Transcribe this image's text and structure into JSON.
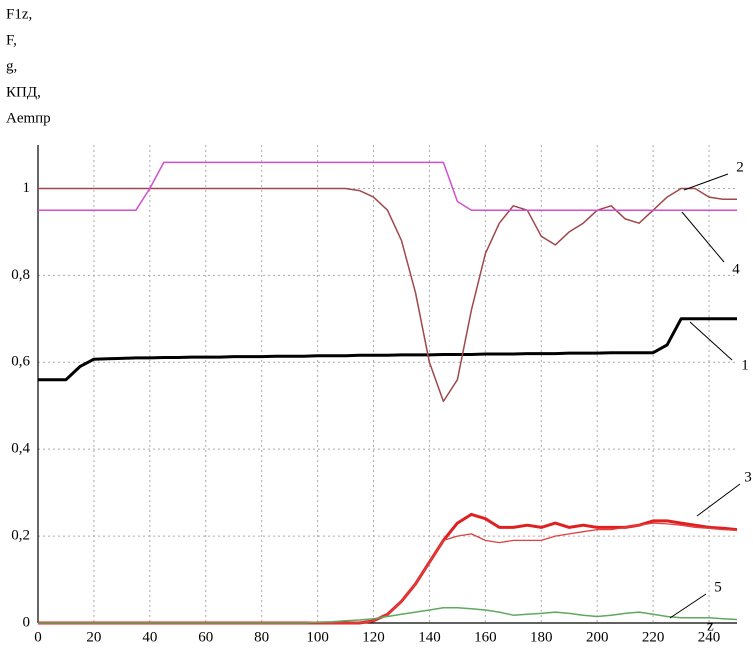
{
  "chart_data": {
    "type": "line",
    "y_labels": [
      "F1z,",
      "F,",
      "g,",
      "КПД,",
      "Aemпр"
    ],
    "x_label": "z",
    "x": [
      0,
      5,
      10,
      15,
      20,
      25,
      30,
      35,
      40,
      45,
      50,
      55,
      60,
      65,
      70,
      75,
      80,
      85,
      90,
      95,
      100,
      105,
      110,
      115,
      120,
      125,
      130,
      135,
      140,
      145,
      150,
      155,
      160,
      165,
      170,
      175,
      180,
      185,
      190,
      195,
      200,
      205,
      210,
      215,
      220,
      225,
      230,
      235,
      240,
      245,
      250
    ],
    "xlim": [
      0,
      250
    ],
    "xticks": [
      0,
      20,
      40,
      60,
      80,
      100,
      120,
      140,
      160,
      180,
      200,
      220,
      240
    ],
    "ylim": [
      0,
      1.1
    ],
    "yticks": [
      0,
      {
        "value": 0.2,
        "label": "0,2"
      },
      {
        "value": 0.4,
        "label": "0,4"
      },
      {
        "value": 0.6,
        "label": "0,6"
      },
      {
        "value": 0.8,
        "label": "0,8"
      },
      1
    ],
    "grid": true,
    "series": [
      {
        "label": "1",
        "color": "#000000",
        "values": [
          0.56,
          0.56,
          0.56,
          0.59,
          0.607,
          0.608,
          0.609,
          0.61,
          0.61,
          0.611,
          0.611,
          0.612,
          0.612,
          0.612,
          0.613,
          0.613,
          0.613,
          0.614,
          0.614,
          0.614,
          0.615,
          0.615,
          0.615,
          0.616,
          0.616,
          0.616,
          0.617,
          0.617,
          0.617,
          0.618,
          0.618,
          0.618,
          0.619,
          0.619,
          0.619,
          0.62,
          0.62,
          0.62,
          0.621,
          0.621,
          0.621,
          0.622,
          0.622,
          0.622,
          0.622,
          0.64,
          0.7,
          0.7,
          0.7,
          0.7,
          0.7
        ]
      },
      {
        "label": "2",
        "color": "#a0484a",
        "values": [
          1,
          1,
          1,
          1,
          1,
          1,
          1,
          1,
          1,
          1,
          1,
          1,
          1,
          1,
          1,
          1,
          1,
          1,
          1,
          1,
          1,
          1,
          1,
          0.995,
          0.98,
          0.95,
          0.88,
          0.76,
          0.6,
          0.51,
          0.56,
          0.72,
          0.85,
          0.92,
          0.96,
          0.95,
          0.89,
          0.87,
          0.9,
          0.92,
          0.95,
          0.96,
          0.93,
          0.92,
          0.95,
          0.98,
          1,
          1,
          0.98,
          0.975,
          0.975
        ]
      },
      {
        "label": "3",
        "color": "#e02020",
        "values": [
          0,
          0,
          0,
          0,
          0,
          0,
          0,
          0,
          0,
          0,
          0,
          0,
          0,
          0,
          0,
          0,
          0,
          0,
          0,
          0,
          0,
          0,
          0,
          0,
          0.005,
          0.02,
          0.05,
          0.09,
          0.14,
          0.19,
          0.23,
          0.25,
          0.24,
          0.22,
          0.22,
          0.225,
          0.22,
          0.23,
          0.22,
          0.225,
          0.22,
          0.22,
          0.22,
          0.225,
          0.235,
          0.235,
          0.23,
          0.225,
          0.22,
          0.218,
          0.215
        ]
      },
      {
        "color": "#e04040",
        "values": [
          0,
          0,
          0,
          0,
          0,
          0,
          0,
          0,
          0,
          0,
          0,
          0,
          0,
          0,
          0,
          0,
          0,
          0,
          0,
          0,
          0,
          0,
          0,
          0,
          0.005,
          0.02,
          0.05,
          0.09,
          0.14,
          0.19,
          0.2,
          0.205,
          0.19,
          0.185,
          0.19,
          0.19,
          0.19,
          0.2,
          0.205,
          0.21,
          0.215,
          0.215,
          0.22,
          0.225,
          0.23,
          0.228,
          0.225,
          0.22,
          0.218,
          0.215,
          0.213
        ]
      },
      {
        "label": "4",
        "color": "#d050d0",
        "values": [
          0.95,
          0.95,
          0.95,
          0.95,
          0.95,
          0.95,
          0.95,
          0.95,
          1,
          1.06,
          1.06,
          1.06,
          1.06,
          1.06,
          1.06,
          1.06,
          1.06,
          1.06,
          1.06,
          1.06,
          1.06,
          1.06,
          1.06,
          1.06,
          1.06,
          1.06,
          1.06,
          1.06,
          1.06,
          1.06,
          0.97,
          0.95,
          0.95,
          0.95,
          0.95,
          0.95,
          0.95,
          0.95,
          0.95,
          0.95,
          0.95,
          0.95,
          0.95,
          0.95,
          0.95,
          0.95,
          0.95,
          0.95,
          0.95,
          0.95,
          0.95
        ]
      },
      {
        "label": "5",
        "color": "#60a860",
        "values": [
          0,
          0,
          0,
          0,
          0,
          0,
          0,
          0,
          0,
          0,
          0,
          0,
          0,
          0,
          0,
          0,
          0,
          0,
          0,
          0,
          0.002,
          0.003,
          0.005,
          0.007,
          0.01,
          0.015,
          0.02,
          0.025,
          0.03,
          0.035,
          0.035,
          0.033,
          0.03,
          0.025,
          0.018,
          0.02,
          0.022,
          0.025,
          0.022,
          0.018,
          0.015,
          0.018,
          0.022,
          0.025,
          0.02,
          0.015,
          0.012,
          0.012,
          0.012,
          0.01,
          0.008
        ]
      }
    ]
  }
}
